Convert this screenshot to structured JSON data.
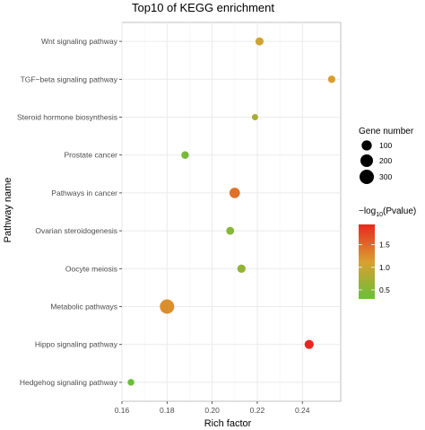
{
  "chart_data": {
    "type": "scatter",
    "title": "Top10 of KEGG enrichment",
    "xlabel": "Rich factor",
    "ylabel": "Pathway name",
    "xlim": [
      0.16,
      0.257
    ],
    "x_ticks": [
      "0.16",
      "0.18",
      "0.20",
      "0.22",
      "0.24"
    ],
    "x_tick_values": [
      0.16,
      0.18,
      0.2,
      0.22,
      0.24
    ],
    "grid": true,
    "categories": [
      "Wnt signaling pathway",
      "TGF−beta signaling pathway",
      "Steroid hormone biosynthesis",
      "Prostate cancer",
      "Pathways in cancer",
      "Ovarian steroidogenesis",
      "Oocyte meiosis",
      "Metabolic pathways",
      "Hippo signaling pathway",
      "Hedgehog signaling pathway"
    ],
    "points": [
      {
        "pathway": "Wnt signaling pathway",
        "rich_factor": 0.221,
        "gene_number": 40,
        "neg_log10_pvalue": 1.05
      },
      {
        "pathway": "TGF−beta signaling pathway",
        "rich_factor": 0.253,
        "gene_number": 25,
        "neg_log10_pvalue": 1.15
      },
      {
        "pathway": "Steroid hormone biosynthesis",
        "rich_factor": 0.219,
        "gene_number": 10,
        "neg_log10_pvalue": 0.75
      },
      {
        "pathway": "Prostate cancer",
        "rich_factor": 0.188,
        "gene_number": 30,
        "neg_log10_pvalue": 0.4
      },
      {
        "pathway": "Pathways in cancer",
        "rich_factor": 0.21,
        "gene_number": 110,
        "neg_log10_pvalue": 1.45
      },
      {
        "pathway": "Ovarian steroidogenesis",
        "rich_factor": 0.208,
        "gene_number": 35,
        "neg_log10_pvalue": 0.5
      },
      {
        "pathway": "Oocyte meiosis",
        "rich_factor": 0.213,
        "gene_number": 45,
        "neg_log10_pvalue": 0.6
      },
      {
        "pathway": "Metabolic pathways",
        "rich_factor": 0.18,
        "gene_number": 300,
        "neg_log10_pvalue": 1.25
      },
      {
        "pathway": "Hippo signaling pathway",
        "rich_factor": 0.243,
        "gene_number": 65,
        "neg_log10_pvalue": 1.95
      },
      {
        "pathway": "Hedgehog signaling pathway",
        "rich_factor": 0.164,
        "gene_number": 15,
        "neg_log10_pvalue": 0.3
      }
    ],
    "size_legend": {
      "title": "Gene number",
      "values": [
        100,
        200,
        300
      ],
      "labels": [
        "100",
        "200",
        "300"
      ]
    },
    "color_legend": {
      "title_prefix": "−log",
      "title_subscript": "10",
      "title_suffix": "(Pvalue)",
      "range": [
        0.3,
        1.95
      ],
      "ticks": [
        0.5,
        1.0,
        1.5
      ],
      "tick_labels": [
        "0.5",
        "1.0",
        "1.5"
      ],
      "low_color": "#6abf3a",
      "mid_color": "#d9a030",
      "high_color": "#e8281e"
    },
    "legend_placement": "right"
  }
}
